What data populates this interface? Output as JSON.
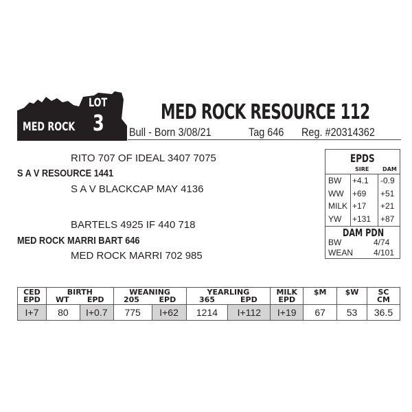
{
  "logo": {
    "brand": "MED ROCK",
    "lot_label": "LOT",
    "lot_number": "3"
  },
  "header": {
    "name": "MED ROCK RESOURCE 112",
    "sex_born": "Bull - Born 3/08/21",
    "tag": "Tag 646",
    "reg": "Reg. #20314362"
  },
  "pedigree": {
    "sire_sire": "RITO 707 OF IDEAL 3407 7075",
    "sire": "S A V RESOURCE 1441",
    "sire_dam": "S A V BLACKCAP MAY 4136",
    "dam_sire": "BARTELS 4925 IF 440 718",
    "dam": "MED ROCK MARRI BART 646",
    "dam_dam": "MED ROCK MARRI 702 985"
  },
  "epds": {
    "title": "EPDS",
    "sire_label": "SIRE",
    "dam_label": "DAM",
    "rows": [
      {
        "trait": "BW",
        "sire": "+4.1",
        "dam": "-0.9"
      },
      {
        "trait": "WW",
        "sire": "+69",
        "dam": "+51"
      },
      {
        "trait": "MILK",
        "sire": "+17",
        "dam": "+21"
      },
      {
        "trait": "YW",
        "sire": "+131",
        "dam": "+87"
      }
    ]
  },
  "dam_pdn": {
    "title": "DAM PDN",
    "rows": [
      {
        "label": "BW",
        "value": "4/74"
      },
      {
        "label": "WEAN",
        "value": "4/101"
      }
    ]
  },
  "perf": {
    "groups": [
      "CED\nEPD",
      "BIRTH",
      "WEANING",
      "YEARLING",
      "MILK\nEPD",
      "$M",
      "$W",
      "SC\nCM"
    ],
    "subs": [
      "WT",
      "EPD",
      "205",
      "EPD",
      "365",
      "EPD"
    ],
    "values": [
      "I+7",
      "80",
      "I+0.7",
      "775",
      "I+62",
      "1214",
      "I+112",
      "I+19",
      "67",
      "53",
      "36.5"
    ],
    "shade_color": "#d4d4d4"
  }
}
